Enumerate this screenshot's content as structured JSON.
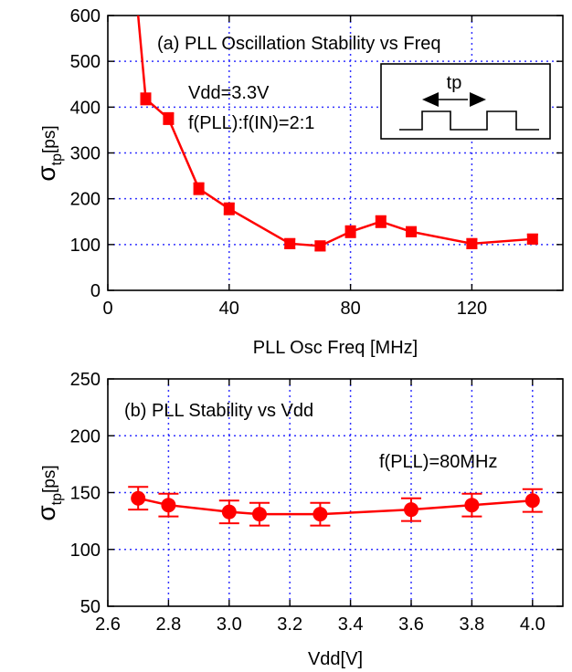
{
  "chart_data": [
    {
      "type": "line",
      "title": "(a) PLL Oscillation Stability vs Freq",
      "xlabel": "PLL Osc Freq [MHz]",
      "ylabel_main": "σ",
      "ylabel_sub": "tp",
      "ylabel_unit": "[ps]",
      "xlim": [
        0,
        150
      ],
      "ylim": [
        0,
        600
      ],
      "xticks": [
        0,
        40,
        80,
        120
      ],
      "yticks": [
        0,
        100,
        200,
        300,
        400,
        500,
        600
      ],
      "grid": true,
      "annotations": [
        "Vdd=3.3V",
        "f(PLL):f(IN)=2:1"
      ],
      "inset_label": "tp",
      "series": [
        {
          "color": "#ff0000",
          "x": [
            12.5,
            20,
            30,
            40,
            60,
            70,
            80,
            90,
            100,
            120,
            140
          ],
          "y": [
            418,
            375,
            222,
            178,
            102,
            97,
            128,
            150,
            128,
            102,
            112
          ],
          "err": [
            12,
            12,
            12,
            12,
            10,
            10,
            12,
            12,
            10,
            10,
            10
          ],
          "x_lead": [
            10,
            12.5
          ],
          "y_lead": [
            610,
            418
          ]
        }
      ]
    },
    {
      "type": "line",
      "title": "(b) PLL Stability vs Vdd",
      "xlabel": "Vdd[V]",
      "ylabel_main": "σ",
      "ylabel_sub": "tp",
      "ylabel_unit": "[ps]",
      "xlim": [
        2.6,
        4.1
      ],
      "ylim": [
        50,
        250
      ],
      "xticks": [
        "2.6",
        "2.8",
        "3.0",
        "3.2",
        "3.4",
        "3.6",
        "3.8",
        "4.0"
      ],
      "yticks": [
        50,
        100,
        150,
        200,
        250
      ],
      "grid": true,
      "annotations": [
        "f(PLL)=80MHz"
      ],
      "series": [
        {
          "color": "#ff0000",
          "x": [
            2.7,
            2.8,
            3.0,
            3.1,
            3.3,
            3.6,
            3.8,
            4.0
          ],
          "y": [
            145,
            139,
            133,
            131,
            131,
            135,
            139,
            143
          ],
          "err": [
            10,
            10,
            10,
            10,
            10,
            10,
            10,
            10
          ]
        }
      ]
    }
  ]
}
